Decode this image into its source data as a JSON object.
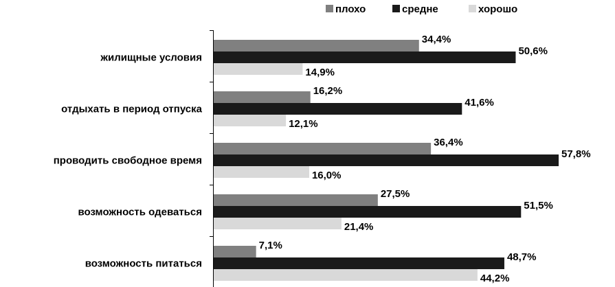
{
  "chart_data": {
    "type": "bar",
    "orientation": "horizontal",
    "categories": [
      "жилищные условия",
      "отдыхать в период отпуска",
      "проводить свободное время",
      "возможность одеваться",
      "возможность питаться"
    ],
    "series": [
      {
        "name": "плохо",
        "color": "#808080",
        "values": [
          34.4,
          16.2,
          36.4,
          27.5,
          7.1
        ]
      },
      {
        "name": "средне",
        "color": "#1a1a1a",
        "values": [
          50.6,
          41.6,
          57.8,
          51.5,
          48.7
        ]
      },
      {
        "name": "хорошо",
        "color": "#d9d9d9",
        "values": [
          14.9,
          12.1,
          16.0,
          21.4,
          44.2
        ]
      }
    ],
    "value_labels": [
      [
        "34,4%",
        "50,6%",
        "14,9%"
      ],
      [
        "16,2%",
        "41,6%",
        "12,1%"
      ],
      [
        "36,4%",
        "57,8%",
        "16,0%"
      ],
      [
        "27,5%",
        "51,5%",
        "21,4%"
      ],
      [
        "7,1%",
        "48,7%",
        "44,2%"
      ]
    ],
    "xlim": [
      0,
      100
    ],
    "grid": false,
    "legend_position": "top"
  }
}
